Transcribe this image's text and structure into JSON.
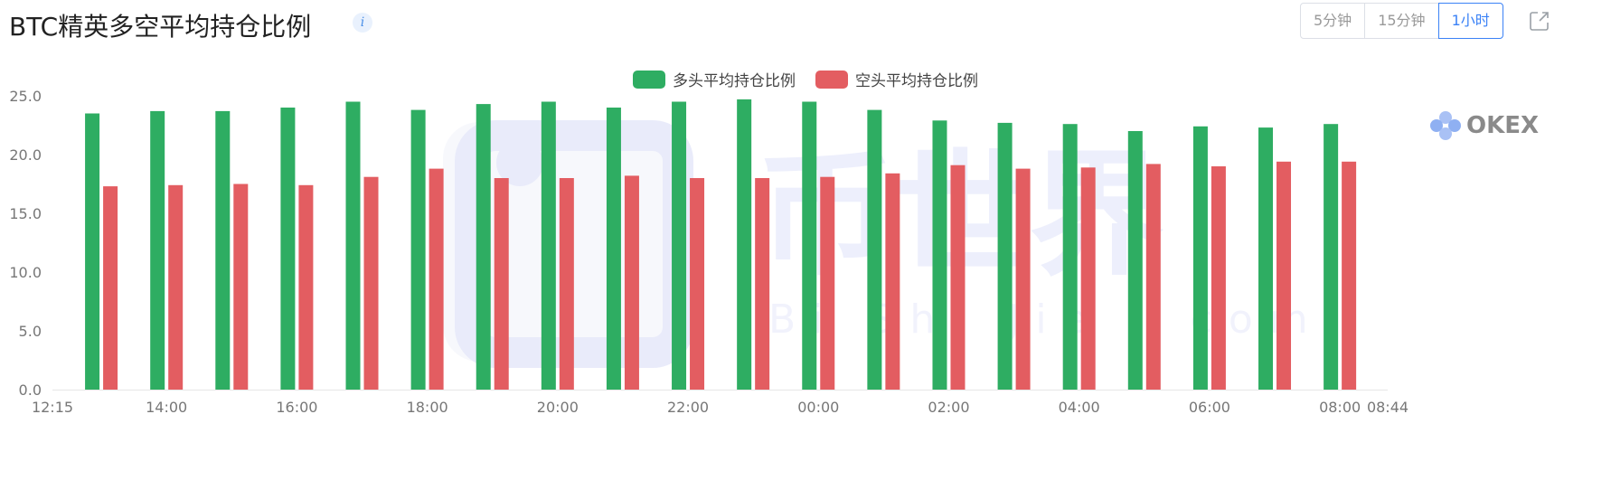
{
  "header": {
    "title": "BTC精英多空平均持仓比例",
    "info_icon": "info-icon",
    "tabs": [
      {
        "label": "5分钟",
        "active": false
      },
      {
        "label": "15分钟",
        "active": false
      },
      {
        "label": "1小时",
        "active": true
      }
    ],
    "share_icon": "share-icon"
  },
  "watermark": {
    "brand_cn": "币世界",
    "brand_en": "BiShiJie.com",
    "okex": "OKEX"
  },
  "chart_data": {
    "type": "bar",
    "title": "",
    "xlabel": "",
    "ylabel": "",
    "ylim": [
      0,
      25
    ],
    "yticks": [
      "0.0",
      "5.0",
      "10.0",
      "15.0",
      "20.0",
      "25.0"
    ],
    "xticks": [
      {
        "t": 0,
        "label": "12:15"
      },
      {
        "t": 105,
        "label": "14:00"
      },
      {
        "t": 225,
        "label": "16:00"
      },
      {
        "t": 345,
        "label": "18:00"
      },
      {
        "t": 465,
        "label": "20:00"
      },
      {
        "t": 585,
        "label": "22:00"
      },
      {
        "t": 705,
        "label": "00:00"
      },
      {
        "t": 825,
        "label": "02:00"
      },
      {
        "t": 945,
        "label": "04:00"
      },
      {
        "t": 1065,
        "label": "06:00"
      },
      {
        "t": 1185,
        "label": "08:00"
      },
      {
        "t": 1229,
        "label": "08:44"
      }
    ],
    "legend_position": "top-center",
    "grid": false,
    "series": [
      {
        "name": "多头平均持仓比例",
        "color": "#2ead62",
        "values": [
          23.5,
          23.7,
          23.7,
          24.0,
          24.5,
          23.8,
          24.3,
          24.5,
          24.0,
          24.5,
          24.7,
          24.5,
          23.8,
          22.9,
          22.7,
          22.6,
          22.0,
          22.4,
          22.3,
          22.6
        ]
      },
      {
        "name": "空头平均持仓比例",
        "color": "#e35d61",
        "values": [
          17.3,
          17.4,
          17.5,
          17.4,
          18.1,
          18.8,
          18.0,
          18.0,
          18.2,
          18.0,
          18.0,
          18.1,
          18.4,
          19.1,
          18.8,
          18.9,
          19.2,
          19.0,
          19.4,
          19.4
        ]
      }
    ],
    "bar_times": [
      45,
      105,
      165,
      225,
      285,
      345,
      405,
      465,
      525,
      585,
      645,
      705,
      765,
      825,
      885,
      945,
      1005,
      1065,
      1125,
      1185
    ]
  }
}
